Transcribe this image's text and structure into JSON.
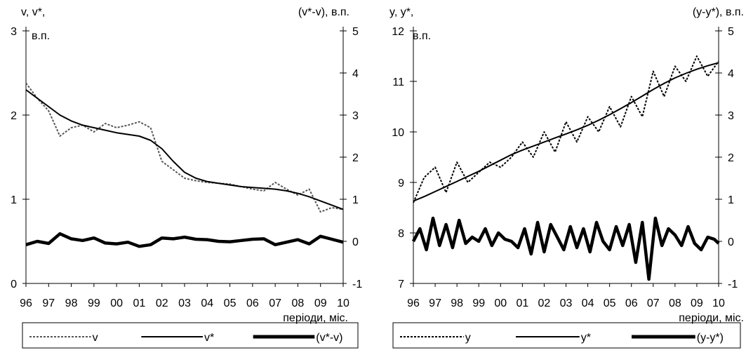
{
  "chart_data": [
    {
      "type": "line",
      "left_axis_label_1": "v, v*,",
      "left_axis_label_2": "в.п.",
      "right_axis_label": "(v*-v), в.п.",
      "xlabel": "періоди, міс.",
      "x_ticks": [
        "96",
        "97",
        "98",
        "99",
        "00",
        "01",
        "02",
        "03",
        "04",
        "05",
        "06",
        "07",
        "08",
        "09",
        "10"
      ],
      "ylim_left": [
        0,
        3
      ],
      "y_ticks_left": [
        "0",
        "1",
        "2",
        "3"
      ],
      "ylim_right": [
        -1,
        5
      ],
      "y_ticks_right": [
        "-1",
        "0",
        "1",
        "2",
        "3",
        "4",
        "5"
      ],
      "legend": [
        "v",
        "v*",
        "(v*-v)"
      ],
      "legend_placement": "bottom",
      "series": [
        {
          "name": "v",
          "axis": "left",
          "style": "dashed",
          "color": "#555555",
          "x": [
            1996.0,
            1996.5,
            1997.0,
            1997.5,
            1998.0,
            1998.5,
            1999.0,
            1999.5,
            2000.0,
            2000.5,
            2001.0,
            2001.5,
            2002.0,
            2002.5,
            2003.0,
            2003.5,
            2004.0,
            2004.5,
            2005.0,
            2005.5,
            2006.0,
            2006.5,
            2007.0,
            2007.5,
            2008.0,
            2008.5,
            2009.0,
            2009.5,
            2010.0
          ],
          "values": [
            2.38,
            2.2,
            2.05,
            1.75,
            1.85,
            1.88,
            1.8,
            1.9,
            1.85,
            1.88,
            1.92,
            1.85,
            1.45,
            1.35,
            1.25,
            1.22,
            1.2,
            1.19,
            1.18,
            1.15,
            1.12,
            1.1,
            1.2,
            1.12,
            1.05,
            1.12,
            0.85,
            0.9,
            0.88
          ]
        },
        {
          "name": "v*",
          "axis": "left",
          "style": "solid",
          "color": "#000000",
          "x": [
            1996.0,
            1996.5,
            1997.0,
            1997.5,
            1998.0,
            1998.5,
            1999.0,
            1999.5,
            2000.0,
            2000.5,
            2001.0,
            2001.5,
            2002.0,
            2002.5,
            2003.0,
            2003.5,
            2004.0,
            2004.5,
            2005.0,
            2005.5,
            2006.0,
            2006.5,
            2007.0,
            2007.5,
            2008.0,
            2008.5,
            2009.0,
            2009.5,
            2010.0
          ],
          "values": [
            2.3,
            2.2,
            2.1,
            2.0,
            1.93,
            1.88,
            1.85,
            1.82,
            1.79,
            1.77,
            1.75,
            1.7,
            1.6,
            1.45,
            1.32,
            1.25,
            1.21,
            1.19,
            1.17,
            1.15,
            1.14,
            1.13,
            1.12,
            1.1,
            1.07,
            1.03,
            0.98,
            0.93,
            0.88
          ]
        },
        {
          "name": "(v*-v)",
          "axis": "right",
          "style": "thick",
          "color": "#000000",
          "x": [
            1996.0,
            1996.5,
            1997.0,
            1997.5,
            1998.0,
            1998.5,
            1999.0,
            1999.5,
            2000.0,
            2000.5,
            2001.0,
            2001.5,
            2002.0,
            2002.5,
            2003.0,
            2003.5,
            2004.0,
            2004.5,
            2005.0,
            2005.5,
            2006.0,
            2006.5,
            2007.0,
            2007.5,
            2008.0,
            2008.5,
            2009.0,
            2009.5,
            2010.0
          ],
          "values": [
            -0.08,
            0.0,
            -0.05,
            0.18,
            0.06,
            0.02,
            0.08,
            -0.04,
            -0.06,
            -0.02,
            -0.12,
            -0.08,
            0.08,
            0.06,
            0.1,
            0.05,
            0.04,
            0.0,
            -0.01,
            0.02,
            0.05,
            0.06,
            -0.08,
            -0.02,
            0.04,
            -0.06,
            0.12,
            0.05,
            -0.02
          ]
        }
      ]
    },
    {
      "type": "line",
      "left_axis_label_1": "y, y*,",
      "left_axis_label_2": "в.п.",
      "right_axis_label": "(y-y*), в.п.",
      "xlabel": "періоди, міс.",
      "x_ticks": [
        "96",
        "97",
        "98",
        "99",
        "00",
        "01",
        "02",
        "03",
        "04",
        "05",
        "06",
        "07",
        "08",
        "09",
        "10"
      ],
      "ylim_left": [
        7,
        12
      ],
      "y_ticks_left": [
        "7",
        "8",
        "9",
        "10",
        "11",
        "12"
      ],
      "ylim_right": [
        -1,
        5
      ],
      "y_ticks_right": [
        "-1",
        "0",
        "1",
        "2",
        "3",
        "4",
        "5"
      ],
      "legend": [
        "y",
        "y*",
        "(y-y*)"
      ],
      "legend_placement": "bottom",
      "series": [
        {
          "name": "y",
          "axis": "left",
          "style": "dashed",
          "color": "#000000",
          "x": [
            1996.0,
            1996.5,
            1997.0,
            1997.5,
            1998.0,
            1998.5,
            1999.0,
            1999.5,
            2000.0,
            2000.5,
            2001.0,
            2001.5,
            2002.0,
            2002.5,
            2003.0,
            2003.5,
            2004.0,
            2004.5,
            2005.0,
            2005.5,
            2006.0,
            2006.5,
            2007.0,
            2007.5,
            2008.0,
            2008.5,
            2009.0,
            2009.5,
            2010.0
          ],
          "values": [
            8.6,
            9.1,
            9.3,
            8.8,
            9.4,
            9.0,
            9.2,
            9.4,
            9.3,
            9.5,
            9.8,
            9.5,
            10.0,
            9.6,
            10.2,
            9.8,
            10.3,
            10.0,
            10.5,
            10.1,
            10.7,
            10.3,
            11.2,
            10.7,
            11.3,
            11.0,
            11.5,
            11.1,
            11.4
          ]
        },
        {
          "name": "y*",
          "axis": "left",
          "style": "solid",
          "color": "#000000",
          "x": [
            1996.0,
            1996.5,
            1997.0,
            1997.5,
            1998.0,
            1998.5,
            1999.0,
            1999.5,
            2000.0,
            2000.5,
            2001.0,
            2001.5,
            2002.0,
            2002.5,
            2003.0,
            2003.5,
            2004.0,
            2004.5,
            2005.0,
            2005.5,
            2006.0,
            2006.5,
            2007.0,
            2007.5,
            2008.0,
            2008.5,
            2009.0,
            2009.5,
            2010.0
          ],
          "values": [
            8.63,
            8.72,
            8.82,
            8.92,
            9.02,
            9.12,
            9.22,
            9.33,
            9.44,
            9.55,
            9.64,
            9.72,
            9.8,
            9.88,
            9.96,
            10.04,
            10.13,
            10.23,
            10.34,
            10.46,
            10.58,
            10.71,
            10.84,
            10.96,
            11.07,
            11.16,
            11.24,
            11.31,
            11.37
          ]
        },
        {
          "name": "(y-y*)",
          "axis": "right",
          "style": "thick",
          "color": "#000000",
          "x": [
            1996.0,
            1996.3,
            1996.6,
            1996.9,
            1997.2,
            1997.5,
            1997.8,
            1998.1,
            1998.4,
            1998.7,
            1999.0,
            1999.3,
            1999.6,
            1999.9,
            2000.2,
            2000.5,
            2000.8,
            2001.1,
            2001.4,
            2001.7,
            2002.0,
            2002.3,
            2002.6,
            2002.9,
            2003.2,
            2003.5,
            2003.8,
            2004.1,
            2004.4,
            2004.7,
            2005.0,
            2005.3,
            2005.6,
            2005.9,
            2006.2,
            2006.5,
            2006.8,
            2007.1,
            2007.4,
            2007.7,
            2008.0,
            2008.3,
            2008.6,
            2008.9,
            2009.2,
            2009.5,
            2009.8,
            2010.0
          ],
          "values": [
            0.0,
            0.3,
            -0.2,
            0.55,
            -0.1,
            0.4,
            -0.15,
            0.5,
            -0.05,
            0.1,
            0.0,
            0.3,
            -0.1,
            0.2,
            0.05,
            0.0,
            -0.15,
            0.3,
            -0.3,
            0.45,
            -0.25,
            0.4,
            0.1,
            -0.2,
            0.35,
            -0.15,
            0.3,
            -0.25,
            0.45,
            0.0,
            -0.2,
            0.35,
            -0.1,
            0.4,
            -0.5,
            0.45,
            -0.9,
            0.55,
            -0.1,
            0.3,
            0.15,
            -0.1,
            0.35,
            -0.05,
            -0.2,
            0.1,
            0.05,
            -0.05
          ]
        }
      ]
    }
  ]
}
